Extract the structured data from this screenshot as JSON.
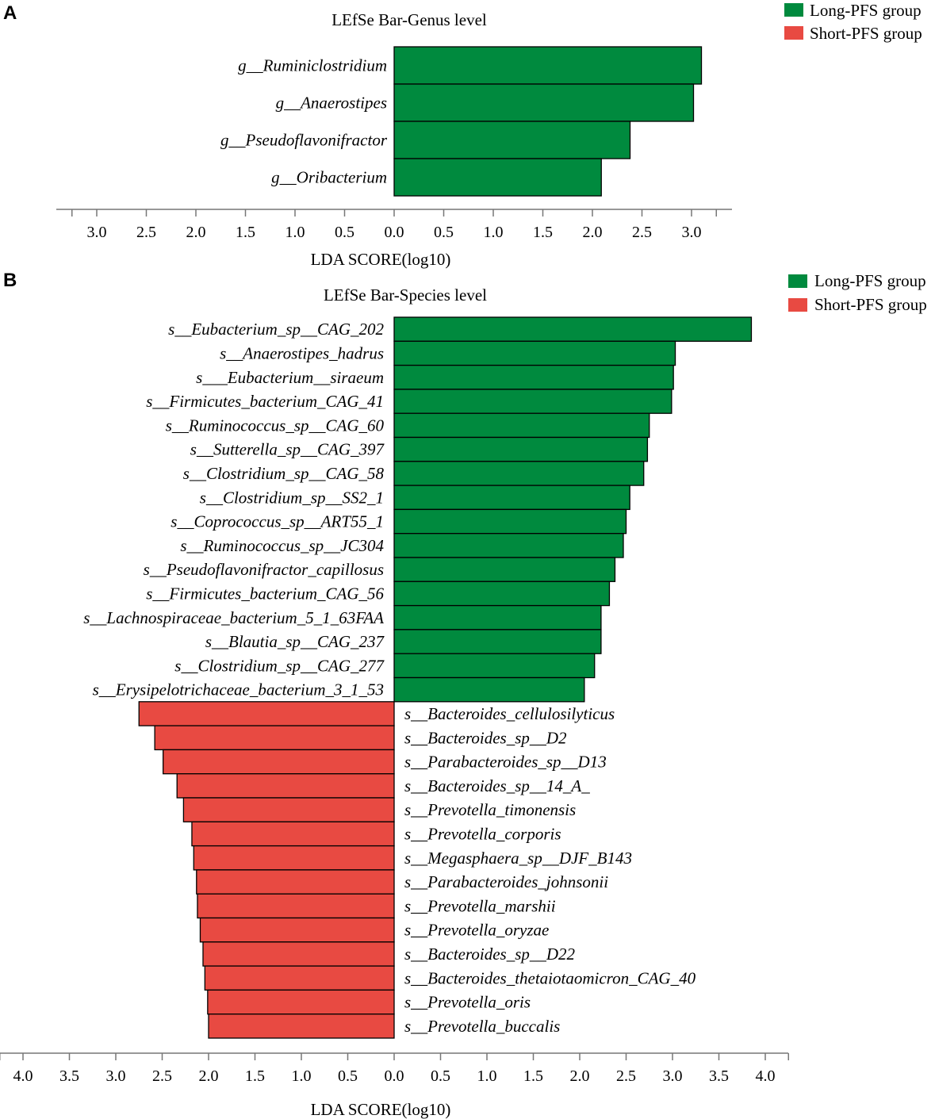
{
  "chart_data": [
    {
      "panel": "A",
      "type": "bar",
      "orientation": "horizontal",
      "title": "LEfSe Bar-Genus level",
      "xlabel": "LDA SCORE(log10)",
      "ticks": [
        "3.0",
        "2.5",
        "2.0",
        "1.5",
        "1.0",
        "0.5",
        "0.0",
        "0.5",
        "1.0",
        "1.5",
        "2.0",
        "2.5",
        "3.0"
      ],
      "legend": [
        {
          "label": "Long-PFS group",
          "color": "#008A3E"
        },
        {
          "label": "Short-PFS group",
          "color": "#E84A42"
        }
      ],
      "categories": [
        "g__Ruminiclostridium",
        "g__Anaerostipes",
        "g__Pseudoflavonifractor",
        "g__Oribacterium"
      ],
      "groups": [
        "Long-PFS group",
        "Long-PFS group",
        "Long-PFS group",
        "Long-PFS group"
      ],
      "values": [
        3.1,
        3.02,
        2.38,
        2.09
      ]
    },
    {
      "panel": "B",
      "type": "bar",
      "orientation": "horizontal",
      "title": "LEfSe Bar-Species level",
      "xlabel": "LDA SCORE(log10)",
      "ticks": [
        "4.0",
        "3.5",
        "3.0",
        "2.5",
        "2.0",
        "1.5",
        "1.0",
        "0.5",
        "0.0",
        "0.5",
        "1.0",
        "1.5",
        "2.0",
        "2.5",
        "3.0",
        "3.5",
        "4.0"
      ],
      "legend": [
        {
          "label": "Long-PFS group",
          "color": "#008A3E"
        },
        {
          "label": "Short-PFS group",
          "color": "#E84A42"
        }
      ],
      "categories": [
        "s__Eubacterium_sp__CAG_202",
        "s__Anaerostipes_hadrus",
        "s___Eubacterium__siraeum",
        "s__Firmicutes_bacterium_CAG_41",
        "s__Ruminococcus_sp__CAG_60",
        "s__Sutterella_sp__CAG_397",
        "s__Clostridium_sp__CAG_58",
        "s__Clostridium_sp__SS2_1",
        "s__Coprococcus_sp__ART55_1",
        "s__Ruminococcus_sp__JC304",
        "s__Pseudoflavonifractor_capillosus",
        "s__Firmicutes_bacterium_CAG_56",
        "s__Lachnospiraceae_bacterium_5_1_63FAA",
        "s__Blautia_sp__CAG_237",
        "s__Clostridium_sp__CAG_277",
        "s__Erysipelotrichaceae_bacterium_3_1_53",
        "s__Bacteroides_cellulosilyticus",
        "s__Bacteroides_sp__D2",
        "s__Parabacteroides_sp__D13",
        "s__Bacteroides_sp__14_A_",
        "s__Prevotella_timonensis",
        "s__Prevotella_corporis",
        "s__Megasphaera_sp__DJF_B143",
        "s__Parabacteroides_johnsonii",
        "s__Prevotella_marshii",
        "s__Prevotella_oryzae",
        "s__Bacteroides_sp__D22",
        "s__Bacteroides_thetaiotaomicron_CAG_40",
        "s__Prevotella_oris",
        "s__Prevotella_buccalis"
      ],
      "groups": [
        "Long-PFS group",
        "Long-PFS group",
        "Long-PFS group",
        "Long-PFS group",
        "Long-PFS group",
        "Long-PFS group",
        "Long-PFS group",
        "Long-PFS group",
        "Long-PFS group",
        "Long-PFS group",
        "Long-PFS group",
        "Long-PFS group",
        "Long-PFS group",
        "Long-PFS group",
        "Long-PFS group",
        "Long-PFS group",
        "Short-PFS group",
        "Short-PFS group",
        "Short-PFS group",
        "Short-PFS group",
        "Short-PFS group",
        "Short-PFS group",
        "Short-PFS group",
        "Short-PFS group",
        "Short-PFS group",
        "Short-PFS group",
        "Short-PFS group",
        "Short-PFS group",
        "Short-PFS group",
        "Short-PFS group"
      ],
      "values": [
        3.85,
        3.03,
        3.01,
        2.99,
        2.75,
        2.73,
        2.69,
        2.54,
        2.5,
        2.47,
        2.38,
        2.32,
        2.23,
        2.23,
        2.16,
        2.05,
        -2.75,
        -2.58,
        -2.49,
        -2.34,
        -2.27,
        -2.18,
        -2.16,
        -2.13,
        -2.12,
        -2.09,
        -2.06,
        -2.04,
        -2.01,
        -2.0
      ]
    }
  ]
}
